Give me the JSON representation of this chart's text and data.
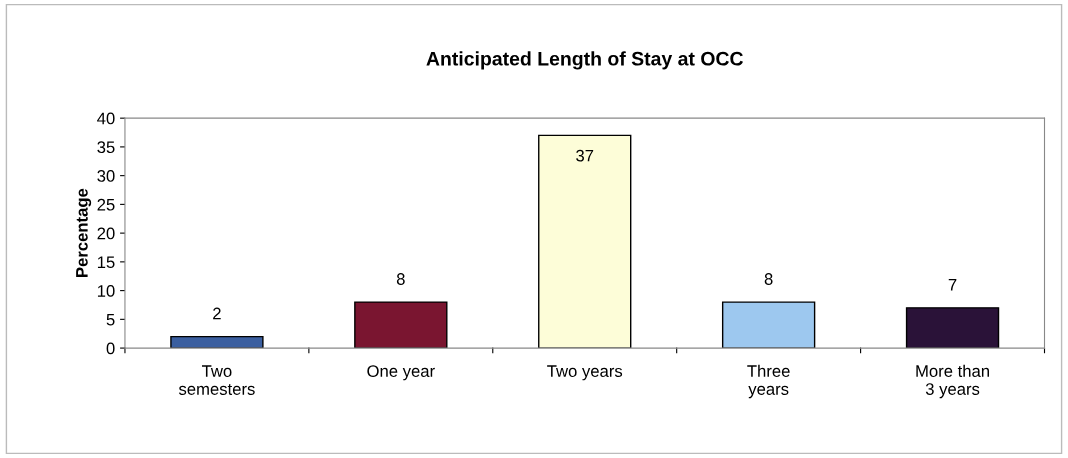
{
  "chart_data": {
    "type": "bar",
    "title": "Anticipated Length of Stay at OCC",
    "ylabel": "Percentage",
    "categories": [
      "Two\nsemesters",
      "One year",
      "Two years",
      "Three\nyears",
      "More than\n3 years"
    ],
    "values": [
      2,
      8,
      37,
      8,
      7
    ],
    "colors": [
      "#3b5fa0",
      "#7a1530",
      "#fdfdd8",
      "#9dc8ef",
      "#2a1238"
    ],
    "ylim": [
      0,
      40
    ],
    "yticks": [
      0,
      5,
      10,
      15,
      20,
      25,
      30,
      35,
      40
    ],
    "grid": false,
    "data_labels": true
  }
}
